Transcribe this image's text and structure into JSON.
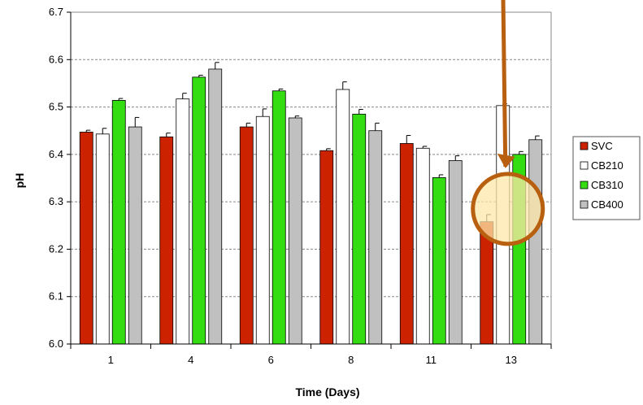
{
  "chart_data": {
    "type": "bar",
    "title": "",
    "xlabel": "Time (Days)",
    "ylabel": "pH",
    "ylim": [
      6.0,
      6.7
    ],
    "yticks": [
      "6.0",
      "6.1",
      "6.2",
      "6.3",
      "6.4",
      "6.5",
      "6.6",
      "6.7"
    ],
    "categories": [
      "1",
      "4",
      "6",
      "8",
      "11",
      "13"
    ],
    "grid": "horizontal dashed",
    "legend_position": "right",
    "series": [
      {
        "name": "SVC",
        "color": "#cc2200",
        "values": [
          6.447,
          6.437,
          6.458,
          6.408,
          6.423,
          6.258
        ],
        "errors": [
          0.004,
          0.008,
          0.008,
          0.004,
          0.017,
          0.015
        ]
      },
      {
        "name": "CB210",
        "color": "#ffffff",
        "values": [
          6.443,
          6.517,
          6.48,
          6.537,
          6.413,
          6.503
        ],
        "errors": [
          0.012,
          0.012,
          0.016,
          0.016,
          0.004,
          0.004
        ]
      },
      {
        "name": "CB310",
        "color": "#33dd11",
        "values": [
          6.514,
          6.563,
          6.534,
          6.485,
          6.351,
          6.4
        ],
        "errors": [
          0.004,
          0.004,
          0.004,
          0.01,
          0.006,
          0.006
        ]
      },
      {
        "name": "CB400",
        "color": "#c0c0c0",
        "values": [
          6.458,
          6.58,
          6.477,
          6.45,
          6.387,
          6.431
        ],
        "errors": [
          0.02,
          0.014,
          0.004,
          0.016,
          0.01,
          0.008
        ]
      }
    ],
    "annotation": {
      "type": "arrow-and-circle",
      "target_category": "13",
      "color": "#b86010",
      "fill": "#fde7a8"
    }
  }
}
